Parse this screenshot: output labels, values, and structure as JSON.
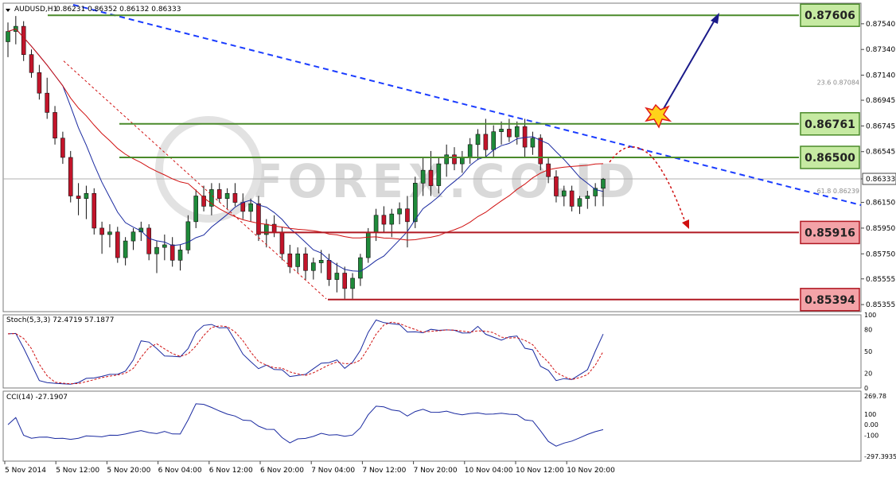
{
  "header": {
    "symbol": "AUDUSD,H1",
    "ohlc": "0.86231 0.86352 0.86132 0.86333"
  },
  "price_axis": {
    "ticks": [
      "0.87540",
      "0.87340",
      "0.87140",
      "0.86945",
      "0.86745",
      "0.86545",
      "0.86333",
      "0.86150",
      "0.85950",
      "0.85750",
      "0.85555",
      "0.85355"
    ],
    "current": "0.86333"
  },
  "fib_labels": [
    {
      "text": "23.6  0.87084",
      "price": 0.87084
    },
    {
      "text": "61.8  0.86239",
      "price": 0.86239
    }
  ],
  "levels": [
    {
      "label": "0.87606",
      "price": 0.87606,
      "kind": "resistance",
      "color": "#c6eaa2",
      "border": "#4a8a2a"
    },
    {
      "label": "0.86761",
      "price": 0.86761,
      "kind": "resistance",
      "color": "#c6eaa2",
      "border": "#4a8a2a"
    },
    {
      "label": "0.86500",
      "price": 0.865,
      "kind": "resistance",
      "color": "#c6eaa2",
      "border": "#4a8a2a"
    },
    {
      "label": "0.85916",
      "price": 0.85916,
      "kind": "support",
      "color": "#f3a3a8",
      "border": "#b01822"
    },
    {
      "label": "0.85394",
      "price": 0.85394,
      "kind": "support",
      "color": "#f3a3a8",
      "border": "#b01822"
    }
  ],
  "stoch": {
    "label": "Stoch(5,3,3) 72.4719 57.1877",
    "ticks": [
      "100",
      "80",
      "50",
      "20",
      "0"
    ]
  },
  "cci": {
    "label": "CCI(14) -27.1907",
    "ticks": [
      "269.78",
      "100",
      "0.00",
      "-100",
      "-297.3935"
    ]
  },
  "time_axis": [
    "5 Nov 2014",
    "5 Nov 12:00",
    "5 Nov 20:00",
    "6 Nov 04:00",
    "6 Nov 12:00",
    "6 Nov 20:00",
    "7 Nov 04:00",
    "7 Nov 12:00",
    "7 Nov 20:00",
    "10 Nov 04:00",
    "10 Nov 12:00",
    "10 Nov 20:00"
  ],
  "watermark": "FOREX.CO.ID",
  "colors": {
    "bull": "#1f8a3a",
    "bear": "#c2142a",
    "ma_fast": "#1a2aa0",
    "ma_slow": "#d01010",
    "trend": "#1a3cff"
  },
  "chart_data": {
    "type": "candlestick",
    "title": "AUDUSD,H1",
    "ylim": [
      0.853,
      0.877
    ],
    "candles": [
      [
        0.874,
        0.8755,
        0.8728,
        0.8748
      ],
      [
        0.8748,
        0.876,
        0.8738,
        0.8752
      ],
      [
        0.8752,
        0.8756,
        0.8725,
        0.873
      ],
      [
        0.873,
        0.8734,
        0.8712,
        0.8716
      ],
      [
        0.8716,
        0.8722,
        0.8695,
        0.87
      ],
      [
        0.87,
        0.8712,
        0.868,
        0.8685
      ],
      [
        0.8685,
        0.869,
        0.866,
        0.8665
      ],
      [
        0.8665,
        0.867,
        0.8645,
        0.865
      ],
      [
        0.865,
        0.8655,
        0.8615,
        0.862
      ],
      [
        0.862,
        0.863,
        0.8605,
        0.8618
      ],
      [
        0.8618,
        0.8628,
        0.8602,
        0.8622
      ],
      [
        0.8622,
        0.8626,
        0.859,
        0.8595
      ],
      [
        0.8595,
        0.86,
        0.8575,
        0.859
      ],
      [
        0.859,
        0.8598,
        0.858,
        0.8592
      ],
      [
        0.8592,
        0.8596,
        0.8568,
        0.8572
      ],
      [
        0.8572,
        0.8588,
        0.8566,
        0.8585
      ],
      [
        0.8585,
        0.8595,
        0.8578,
        0.8592
      ],
      [
        0.8592,
        0.86,
        0.8585,
        0.8595
      ],
      [
        0.8595,
        0.8598,
        0.857,
        0.8575
      ],
      [
        0.8575,
        0.8585,
        0.856,
        0.858
      ],
      [
        0.858,
        0.859,
        0.857,
        0.8582
      ],
      [
        0.8582,
        0.8588,
        0.8565,
        0.857
      ],
      [
        0.857,
        0.8582,
        0.8562,
        0.8578
      ],
      [
        0.8578,
        0.8605,
        0.8575,
        0.86
      ],
      [
        0.86,
        0.8625,
        0.8595,
        0.862
      ],
      [
        0.862,
        0.8628,
        0.8608,
        0.8612
      ],
      [
        0.8612,
        0.863,
        0.8605,
        0.8625
      ],
      [
        0.8625,
        0.863,
        0.8615,
        0.8618
      ],
      [
        0.8618,
        0.8626,
        0.861,
        0.8622
      ],
      [
        0.8622,
        0.863,
        0.8612,
        0.8615
      ],
      [
        0.8615,
        0.8622,
        0.8602,
        0.8608
      ],
      [
        0.8608,
        0.8618,
        0.86,
        0.8614
      ],
      [
        0.8614,
        0.862,
        0.8585,
        0.859
      ],
      [
        0.859,
        0.8602,
        0.858,
        0.8598
      ],
      [
        0.8598,
        0.8605,
        0.8588,
        0.8592
      ],
      [
        0.8592,
        0.8596,
        0.857,
        0.8575
      ],
      [
        0.8575,
        0.8582,
        0.856,
        0.8565
      ],
      [
        0.8565,
        0.858,
        0.856,
        0.8575
      ],
      [
        0.8575,
        0.858,
        0.8555,
        0.8562
      ],
      [
        0.8562,
        0.8572,
        0.8555,
        0.8568
      ],
      [
        0.8568,
        0.8578,
        0.856,
        0.857
      ],
      [
        0.857,
        0.8575,
        0.855,
        0.8555
      ],
      [
        0.8555,
        0.8568,
        0.8545,
        0.856
      ],
      [
        0.856,
        0.8565,
        0.854,
        0.8548
      ],
      [
        0.8548,
        0.856,
        0.854,
        0.8556
      ],
      [
        0.8556,
        0.8575,
        0.855,
        0.8572
      ],
      [
        0.8572,
        0.8595,
        0.8568,
        0.8592
      ],
      [
        0.8592,
        0.861,
        0.8585,
        0.8605
      ],
      [
        0.8605,
        0.8612,
        0.8592,
        0.8598
      ],
      [
        0.8598,
        0.861,
        0.8588,
        0.8606
      ],
      [
        0.8606,
        0.8615,
        0.8598,
        0.861
      ],
      [
        0.861,
        0.862,
        0.858,
        0.86
      ],
      [
        0.86,
        0.8635,
        0.8595,
        0.863
      ],
      [
        0.863,
        0.865,
        0.862,
        0.864
      ],
      [
        0.864,
        0.8655,
        0.862,
        0.8628
      ],
      [
        0.8628,
        0.865,
        0.8622,
        0.8645
      ],
      [
        0.8645,
        0.866,
        0.8635,
        0.8652
      ],
      [
        0.8652,
        0.8658,
        0.864,
        0.8645
      ],
      [
        0.8645,
        0.8655,
        0.8638,
        0.865
      ],
      [
        0.865,
        0.8665,
        0.8645,
        0.866
      ],
      [
        0.866,
        0.8672,
        0.8648,
        0.8668
      ],
      [
        0.8668,
        0.868,
        0.865,
        0.8656
      ],
      [
        0.8656,
        0.8675,
        0.865,
        0.867
      ],
      [
        0.867,
        0.8678,
        0.866,
        0.8672
      ],
      [
        0.8672,
        0.868,
        0.8662,
        0.8666
      ],
      [
        0.8666,
        0.8678,
        0.866,
        0.8674
      ],
      [
        0.8674,
        0.868,
        0.865,
        0.8658
      ],
      [
        0.8658,
        0.867,
        0.8652,
        0.8665
      ],
      [
        0.8665,
        0.8668,
        0.864,
        0.8645
      ],
      [
        0.8645,
        0.865,
        0.863,
        0.8635
      ],
      [
        0.8635,
        0.864,
        0.8615,
        0.862
      ],
      [
        0.862,
        0.8628,
        0.8612,
        0.8624
      ],
      [
        0.8624,
        0.8628,
        0.8608,
        0.8612
      ],
      [
        0.8612,
        0.862,
        0.8606,
        0.8618
      ],
      [
        0.8618,
        0.8624,
        0.861,
        0.862
      ],
      [
        0.862,
        0.863,
        0.8612,
        0.8626
      ],
      [
        0.8626,
        0.8634,
        0.8612,
        0.8633
      ]
    ],
    "xlabel": "",
    "ylabel": ""
  }
}
